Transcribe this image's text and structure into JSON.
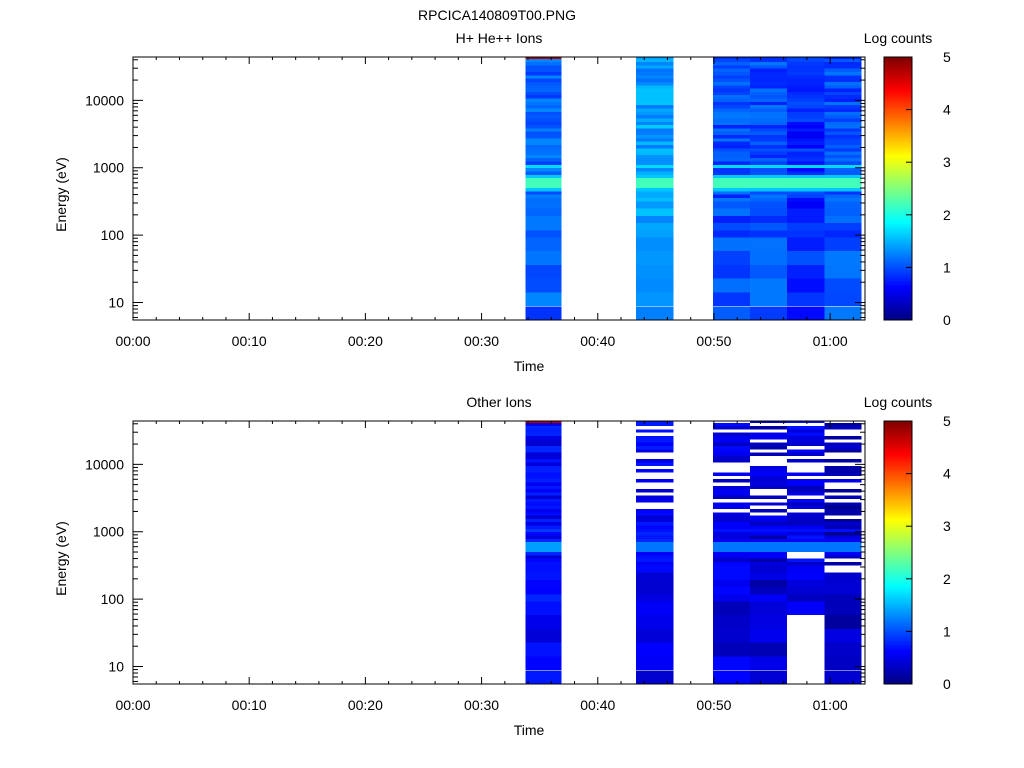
{
  "figure_title": "RPCICA140809T00.PNG",
  "chart_data": [
    {
      "type": "heatmap",
      "title": "H+ He++ Ions",
      "xlabel": "Time",
      "ylabel": "Energy (eV)",
      "colorbar_label": "Log counts",
      "x_ticks": [
        "00:00",
        "00:10",
        "00:20",
        "00:30",
        "00:40",
        "00:50",
        "01:00"
      ],
      "x_range_minutes": [
        0,
        63
      ],
      "y_scale": "log",
      "y_range": [
        5.5,
        44000
      ],
      "y_ticks": [
        {
          "v": 10,
          "label": "10"
        },
        {
          "v": 100,
          "label": "100"
        },
        {
          "v": 1000,
          "label": "1000"
        },
        {
          "v": 10000,
          "label": "10000"
        }
      ],
      "colorbar_range": [
        0,
        5
      ],
      "colorbar_ticks": [
        "0",
        "1",
        "2",
        "3",
        "4",
        "5"
      ],
      "colorscale": [
        "#00007f",
        "#0000ff",
        "#007fff",
        "#00ffff",
        "#7fff7f",
        "#ffff00",
        "#ff7f00",
        "#ff0000",
        "#7f0000"
      ],
      "grid": false,
      "blocks": [
        {
          "t_start": 33.8,
          "t_end": 36.9,
          "dominant_log_counts": 1.1,
          "peak": {
            "energy_eV": 600,
            "log_counts": 2.2
          },
          "top_band_log_counts": 4.7
        },
        {
          "t_start": 43.3,
          "t_end": 46.5,
          "dominant_log_counts": 1.4,
          "peak": {
            "energy_eV": 600,
            "log_counts": 2.2
          }
        },
        {
          "t_start": 49.9,
          "t_end": 53.1,
          "dominant_log_counts": 1.0,
          "peak": {
            "energy_eV": 600,
            "log_counts": 2.2
          }
        },
        {
          "t_start": 53.1,
          "t_end": 56.3,
          "dominant_log_counts": 1.0,
          "peak": {
            "energy_eV": 600,
            "log_counts": 2.2
          }
        },
        {
          "t_start": 56.3,
          "t_end": 59.5,
          "dominant_log_counts": 0.8,
          "peak": {
            "energy_eV": 600,
            "log_counts": 2.2
          }
        },
        {
          "t_start": 59.5,
          "t_end": 62.7,
          "dominant_log_counts": 1.0,
          "peak": {
            "energy_eV": 600,
            "log_counts": 2.2
          }
        }
      ]
    },
    {
      "type": "heatmap",
      "title": "Other Ions",
      "xlabel": "Time",
      "ylabel": "Energy (eV)",
      "colorbar_label": "Log counts",
      "x_ticks": [
        "00:00",
        "00:10",
        "00:20",
        "00:30",
        "00:40",
        "00:50",
        "01:00"
      ],
      "x_range_minutes": [
        0,
        63
      ],
      "y_scale": "log",
      "y_range": [
        5.5,
        44000
      ],
      "y_ticks": [
        {
          "v": 10,
          "label": "10"
        },
        {
          "v": 100,
          "label": "100"
        },
        {
          "v": 1000,
          "label": "1000"
        },
        {
          "v": 10000,
          "label": "10000"
        }
      ],
      "colorbar_range": [
        0,
        5
      ],
      "colorbar_ticks": [
        "0",
        "1",
        "2",
        "3",
        "4",
        "5"
      ],
      "colorscale": [
        "#00007f",
        "#0000ff",
        "#007fff",
        "#00ffff",
        "#7fff7f",
        "#ffff00",
        "#ff7f00",
        "#ff0000",
        "#7f0000"
      ],
      "grid": false,
      "blocks": [
        {
          "t_start": 33.8,
          "t_end": 36.9,
          "dominant_log_counts": 0.6,
          "peak": {
            "energy_eV": 600,
            "log_counts": 1.4
          },
          "top_band_log_counts": 4.7
        },
        {
          "t_start": 43.3,
          "t_end": 46.5,
          "dominant_log_counts": 0.6,
          "peak": {
            "energy_eV": 600,
            "log_counts": 1.2
          }
        },
        {
          "t_start": 49.9,
          "t_end": 53.1,
          "dominant_log_counts": 0.5,
          "peak": {
            "energy_eV": 600,
            "log_counts": 1.2
          }
        },
        {
          "t_start": 53.1,
          "t_end": 56.3,
          "dominant_log_counts": 0.4,
          "peak": {
            "energy_eV": 600,
            "log_counts": 1.2
          }
        },
        {
          "t_start": 56.3,
          "t_end": 59.5,
          "dominant_log_counts": 0.5,
          "peak": {
            "energy_eV": 600,
            "log_counts": 1.2
          }
        },
        {
          "t_start": 59.5,
          "t_end": 62.7,
          "dominant_log_counts": 0.3,
          "peak": {
            "energy_eV": 600,
            "log_counts": 1.2
          }
        }
      ]
    }
  ]
}
